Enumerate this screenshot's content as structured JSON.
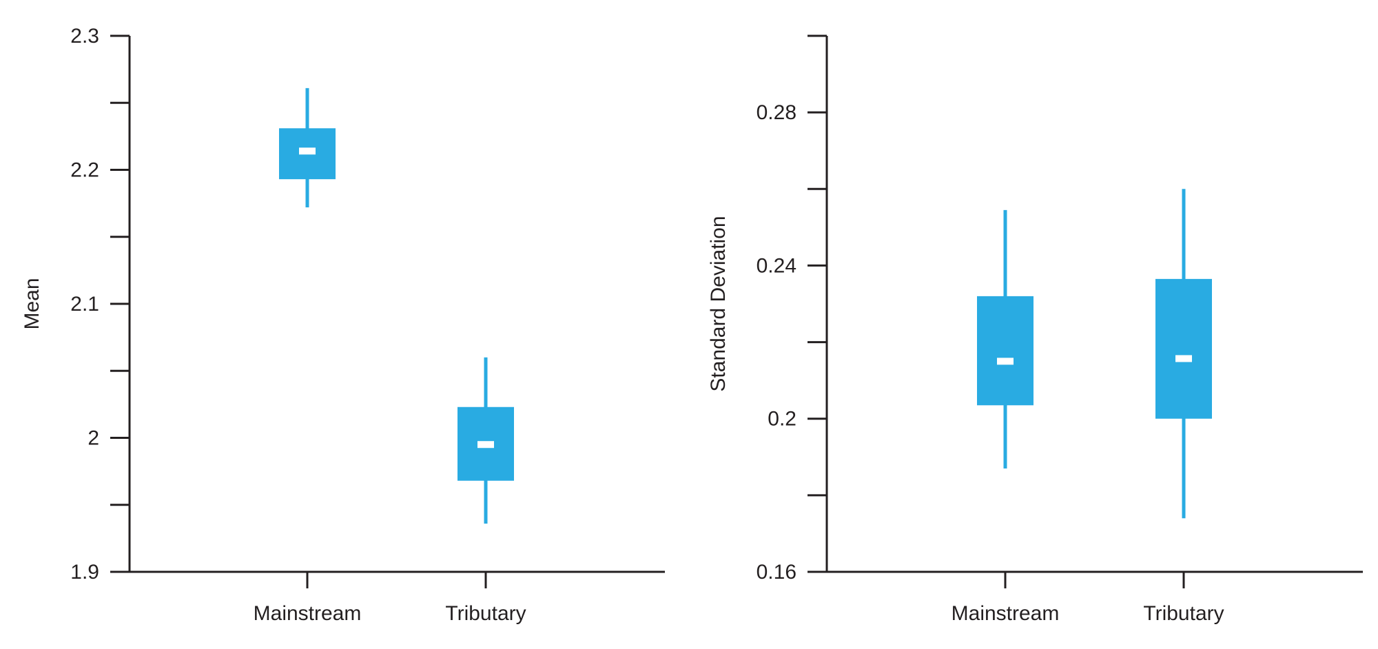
{
  "colors": {
    "box": "#29abe2",
    "median": "#ffffff",
    "axis": "#231f20"
  },
  "chart_data": [
    {
      "type": "box",
      "ylabel": "Mean",
      "ylim": [
        1.9,
        2.3
      ],
      "yticks_major": [
        1.9,
        2.0,
        2.1,
        2.2,
        2.3
      ],
      "ytick_labels": [
        "1.9",
        "2",
        "2.1",
        "2.2",
        "2.3"
      ],
      "yticks_minor": [
        1.95,
        2.05,
        2.15,
        2.25
      ],
      "categories": [
        "Mainstream",
        "Tributary"
      ],
      "boxes": [
        {
          "category": "Mainstream",
          "whisker_low": 2.172,
          "q1": 2.193,
          "median": 2.214,
          "q3": 2.231,
          "whisker_high": 2.261
        },
        {
          "category": "Tributary",
          "whisker_low": 1.936,
          "q1": 1.968,
          "median": 1.995,
          "q3": 2.023,
          "whisker_high": 2.06
        }
      ]
    },
    {
      "type": "box",
      "ylabel": "Standard Deviation",
      "ylim": [
        0.16,
        0.3
      ],
      "yticks_major": [
        0.16,
        0.2,
        0.24,
        0.28
      ],
      "ytick_labels": [
        "0.16",
        "0.2",
        "0.24",
        "0.28"
      ],
      "yticks_minor": [
        0.18,
        0.22,
        0.26,
        0.3
      ],
      "categories": [
        "Mainstream",
        "Tributary"
      ],
      "boxes": [
        {
          "category": "Mainstream",
          "whisker_low": 0.187,
          "q1": 0.2035,
          "median": 0.215,
          "q3": 0.232,
          "whisker_high": 0.2545
        },
        {
          "category": "Tributary",
          "whisker_low": 0.174,
          "q1": 0.2,
          "median": 0.2157,
          "q3": 0.2365,
          "whisker_high": 0.26
        }
      ]
    }
  ]
}
